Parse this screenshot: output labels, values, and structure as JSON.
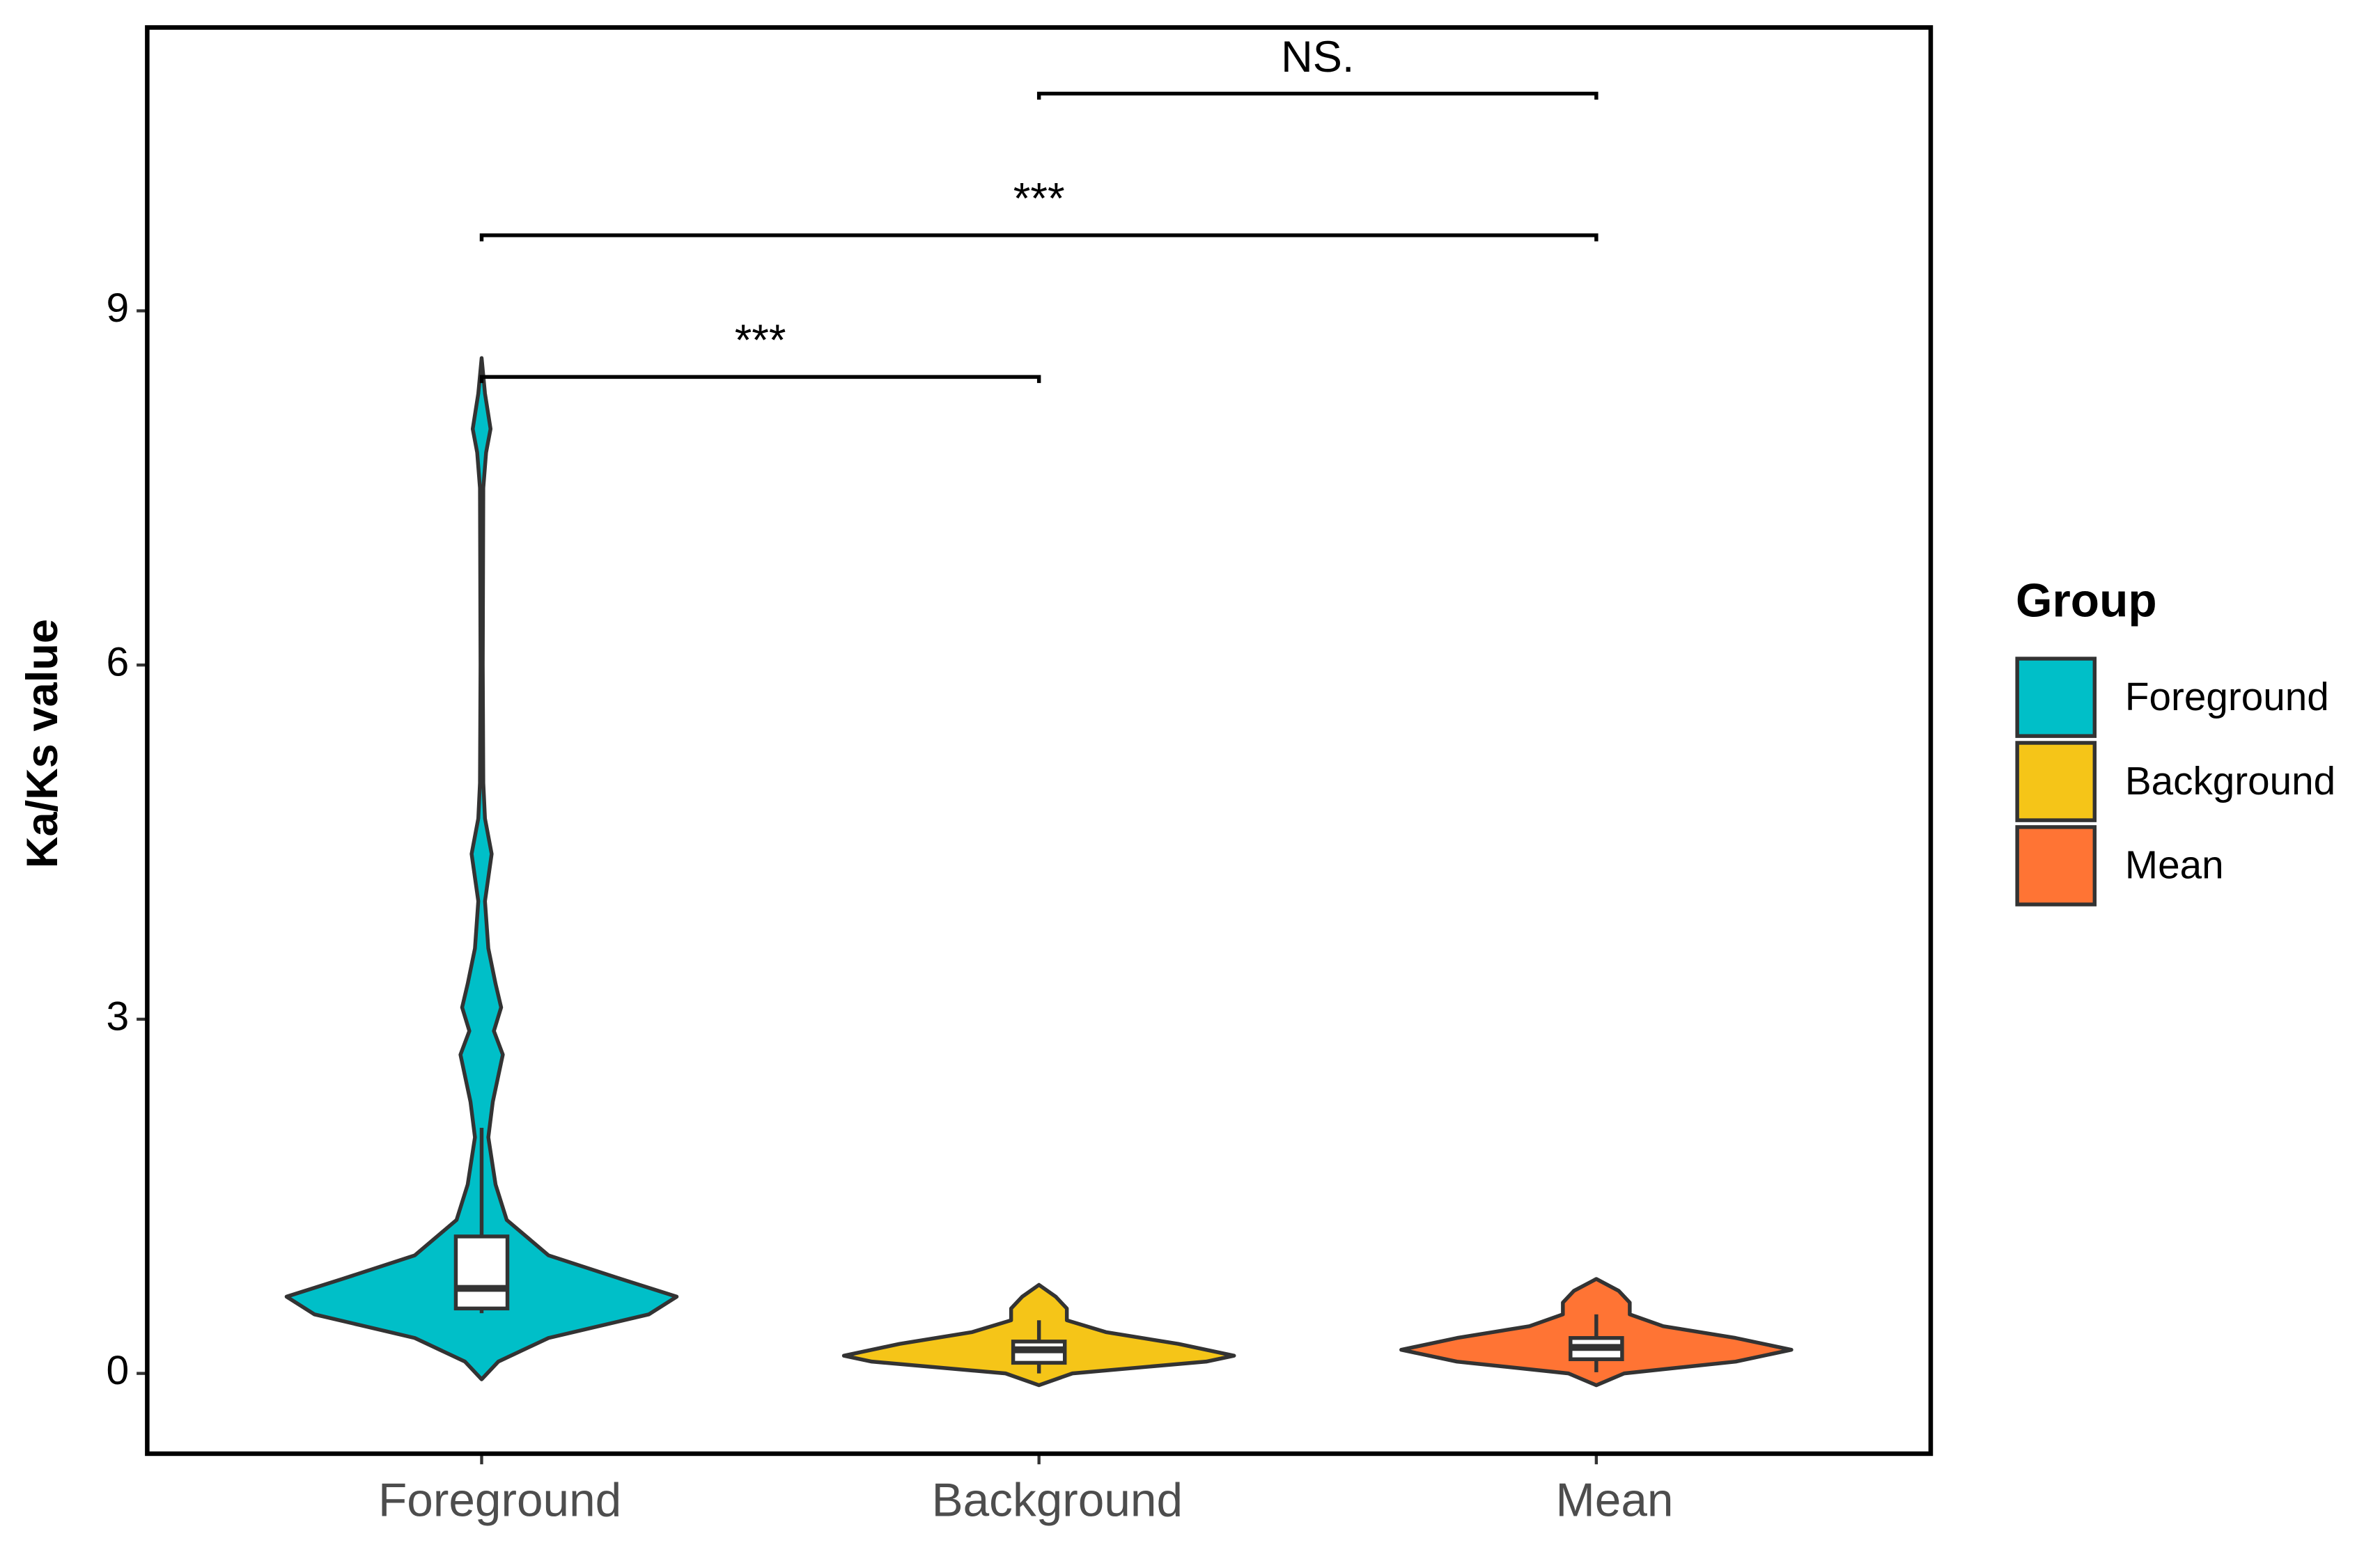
{
  "chart_data": {
    "type": "violin",
    "y_label": "Ka/Ks value",
    "legend_title": "Group",
    "legend_position": "right",
    "categories": [
      "Foreground",
      "Background",
      "Mean"
    ],
    "ylim": [
      -0.68,
      11.4
    ],
    "yticks": [
      0,
      3,
      6,
      9
    ],
    "grid": false,
    "series": [
      {
        "name": "Foreground",
        "color": "#00bfc8",
        "box": {
          "min": 0.51,
          "q1": 0.55,
          "median": 0.72,
          "q3": 1.16,
          "max": 2.08
        },
        "density": {
          "y": [
            -0.05,
            0.1,
            0.3,
            0.5,
            0.65,
            0.8,
            1.0,
            1.3,
            1.6,
            2.0,
            2.3,
            2.7,
            2.9,
            3.1,
            3.3,
            3.6,
            4.0,
            4.4,
            4.7,
            5.0,
            6.0,
            7.5,
            7.8,
            8.0,
            8.3,
            8.6
          ],
          "width": [
            0,
            0.03,
            0.12,
            0.3,
            0.35,
            0.25,
            0.12,
            0.045,
            0.025,
            0.012,
            0.02,
            0.038,
            0.022,
            0.035,
            0.025,
            0.012,
            0.006,
            0.018,
            0.006,
            0.003,
            0.002,
            0.003,
            0.008,
            0.016,
            0.006,
            0
          ]
        }
      },
      {
        "name": "Background",
        "color": "#f5c518",
        "box": {
          "min": 0.0,
          "q1": 0.09,
          "median": 0.2,
          "q3": 0.27,
          "max": 0.45
        },
        "density": {
          "y": [
            -0.1,
            0.0,
            0.1,
            0.15,
            0.25,
            0.35,
            0.45,
            0.55,
            0.65,
            0.75
          ],
          "width": [
            0,
            0.06,
            0.3,
            0.35,
            0.25,
            0.12,
            0.05,
            0.05,
            0.03,
            0
          ]
        }
      },
      {
        "name": "Mean",
        "color": "#ff7434",
        "box": {
          "min": 0.01,
          "q1": 0.12,
          "median": 0.22,
          "q3": 0.3,
          "max": 0.5
        },
        "density": {
          "y": [
            -0.1,
            0.0,
            0.1,
            0.2,
            0.3,
            0.4,
            0.5,
            0.6,
            0.7,
            0.8
          ],
          "width": [
            0,
            0.05,
            0.25,
            0.35,
            0.25,
            0.12,
            0.06,
            0.06,
            0.04,
            0
          ]
        }
      }
    ],
    "comparisons": [
      {
        "from": "Foreground",
        "to": "Background",
        "y": 8.44,
        "label": "***"
      },
      {
        "from": "Foreground",
        "to": "Mean",
        "y": 9.64,
        "label": "***"
      },
      {
        "from": "Background",
        "to": "Mean",
        "y": 10.84,
        "label": "NS."
      }
    ]
  }
}
